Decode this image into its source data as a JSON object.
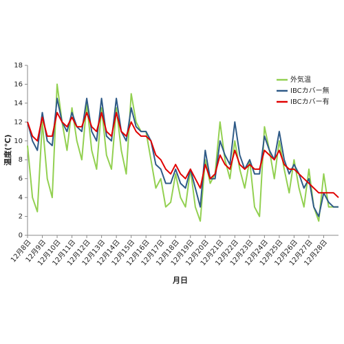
{
  "chart_data": {
    "type": "line",
    "x_label": "月日",
    "y_label": "温度(℃)",
    "categories": [
      "12月8日",
      null,
      null,
      "12月9日",
      null,
      null,
      "12月10日",
      null,
      null,
      "12月11日",
      null,
      null,
      "12月12日",
      null,
      null,
      "12月13日",
      null,
      null,
      "12月14日",
      null,
      null,
      "12月15日",
      null,
      null,
      "12月16日",
      null,
      null,
      "12月17日",
      null,
      null,
      "12月18日",
      null,
      null,
      "12月19日",
      null,
      null,
      "12月20日",
      null,
      null,
      "12月21日",
      null,
      null,
      "12月22日",
      null,
      null,
      "12月23日",
      null,
      null,
      "12月24日",
      null,
      null,
      "12月25日",
      null,
      null,
      "12月26日",
      null,
      null,
      "12月27日",
      null,
      null,
      "12月28日",
      null,
      null,
      null
    ],
    "series": [
      {
        "name": "外気温",
        "color": "#92d050",
        "values": [
          9.5,
          4,
          2.5,
          12,
          6,
          4,
          16,
          12,
          9,
          13.5,
          10,
          8,
          14,
          9,
          7,
          13.5,
          8.5,
          7,
          13.5,
          9,
          6.5,
          15,
          12,
          11,
          11,
          8,
          5,
          6,
          3,
          3.5,
          6.5,
          4,
          3,
          7,
          3,
          1.5,
          8,
          5.5,
          6.5,
          12,
          8,
          6,
          10,
          7,
          5,
          8,
          3,
          2,
          11.5,
          9,
          6,
          10,
          7,
          4.5,
          8,
          5,
          3,
          7,
          3,
          1.5,
          6.5,
          3,
          3,
          3
        ]
      },
      {
        "name": "IBCカバー無",
        "color": "#2e5a87",
        "values": [
          12,
          10,
          9,
          13,
          10,
          9.5,
          14.5,
          12,
          11,
          13,
          11.5,
          11,
          14.5,
          11,
          10,
          14.5,
          10.5,
          10,
          14.5,
          11,
          10,
          13.5,
          11.5,
          11,
          11,
          10,
          7.5,
          7,
          5.5,
          5.5,
          7,
          5.5,
          5,
          7,
          5,
          3,
          9,
          6,
          6,
          10,
          8.5,
          7.5,
          12,
          8.5,
          7,
          8,
          6.5,
          6.5,
          10.5,
          9,
          8,
          11,
          8,
          6.5,
          7.5,
          6.5,
          5,
          6,
          3,
          2,
          4.5,
          3.5,
          3,
          3
        ]
      },
      {
        "name": "IBCカバー有",
        "color": "#e00000",
        "values": [
          12,
          10.5,
          10,
          12.5,
          10.5,
          10.5,
          13,
          12,
          11.5,
          12.5,
          11.5,
          11.5,
          13,
          11.5,
          11,
          13,
          11,
          10.5,
          13,
          11,
          10.5,
          12,
          11,
          10.5,
          10.5,
          10,
          8.5,
          8,
          7,
          6.5,
          7.5,
          6.5,
          6,
          7,
          6,
          5,
          7.5,
          6,
          6.5,
          8.5,
          7.5,
          7,
          9,
          7.5,
          7,
          7.5,
          7,
          7,
          9,
          8.5,
          8,
          9,
          7.5,
          7,
          7,
          6.5,
          6,
          5.5,
          5,
          4.5,
          4.5,
          4.5,
          4.5,
          4
        ]
      }
    ],
    "ylim": [
      0,
      18
    ],
    "yticks": [
      0,
      2,
      4,
      6,
      8,
      10,
      12,
      14,
      16,
      18
    ],
    "grid": false,
    "legend": "upper right"
  }
}
